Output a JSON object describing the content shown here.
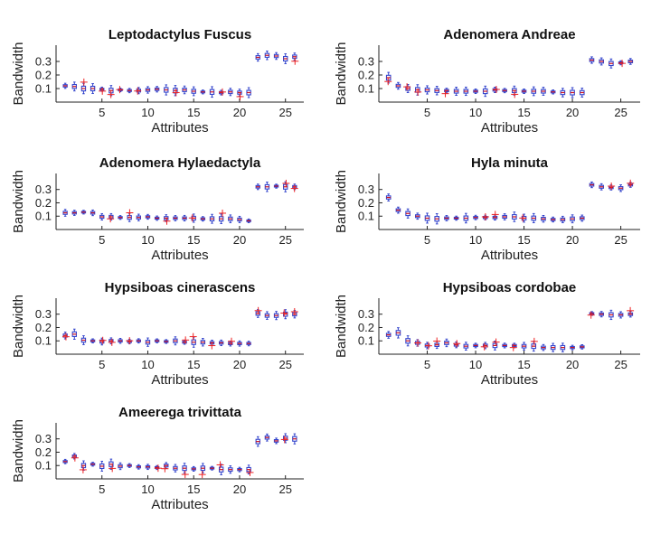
{
  "chart_data": [
    {
      "type": "box",
      "title": "Leptodactylus Fuscus",
      "xlabel": "Attributes",
      "ylabel": "Bandwidth",
      "xlim": [
        0,
        27
      ],
      "ylim": [
        0,
        0.42
      ],
      "xticks": [
        5,
        10,
        15,
        20,
        25
      ],
      "yticks": [
        0.1,
        0.2,
        0.3
      ],
      "series": {
        "name": "bandwidth",
        "medians": [
          0.12,
          0.115,
          0.1,
          0.1,
          0.095,
          0.085,
          0.09,
          0.085,
          0.085,
          0.09,
          0.095,
          0.09,
          0.085,
          0.09,
          0.08,
          0.075,
          0.075,
          0.07,
          0.075,
          0.07,
          0.07,
          0.33,
          0.345,
          0.34,
          0.32,
          0.335
        ]
      }
    },
    {
      "type": "box",
      "title": "Adenomera Andreae",
      "xlabel": "Attributes",
      "ylabel": "Bandwidth",
      "xlim": [
        0,
        27
      ],
      "ylim": [
        0,
        0.42
      ],
      "xticks": [
        5,
        10,
        15,
        20,
        25
      ],
      "yticks": [
        0.1,
        0.2,
        0.3
      ],
      "series": {
        "name": "bandwidth",
        "medians": [
          0.18,
          0.12,
          0.1,
          0.09,
          0.09,
          0.085,
          0.085,
          0.08,
          0.08,
          0.08,
          0.08,
          0.09,
          0.085,
          0.085,
          0.08,
          0.08,
          0.08,
          0.075,
          0.07,
          0.07,
          0.07,
          0.31,
          0.3,
          0.285,
          0.29,
          0.3
        ]
      }
    },
    {
      "type": "box",
      "title": "Adenomera Hylaedactyla",
      "xlabel": "Attributes",
      "ylabel": "Bandwidth",
      "xlim": [
        0,
        27
      ],
      "ylim": [
        0,
        0.42
      ],
      "xticks": [
        5,
        10,
        15,
        20,
        25
      ],
      "yticks": [
        0.1,
        0.2,
        0.3
      ],
      "series": {
        "name": "bandwidth",
        "medians": [
          0.125,
          0.125,
          0.13,
          0.125,
          0.095,
          0.095,
          0.09,
          0.09,
          0.09,
          0.095,
          0.085,
          0.085,
          0.085,
          0.085,
          0.085,
          0.08,
          0.08,
          0.08,
          0.08,
          0.075,
          0.065,
          0.32,
          0.32,
          0.325,
          0.32,
          0.32
        ]
      }
    },
    {
      "type": "box",
      "title": "Hyla minuta",
      "xlabel": "Attributes",
      "ylabel": "Bandwidth",
      "xlim": [
        0,
        27
      ],
      "ylim": [
        0,
        0.42
      ],
      "xticks": [
        5,
        10,
        15,
        20,
        25
      ],
      "yticks": [
        0.1,
        0.2,
        0.3
      ],
      "series": {
        "name": "bandwidth",
        "medians": [
          0.24,
          0.145,
          0.12,
          0.1,
          0.085,
          0.08,
          0.085,
          0.085,
          0.085,
          0.09,
          0.09,
          0.09,
          0.095,
          0.095,
          0.085,
          0.085,
          0.08,
          0.075,
          0.075,
          0.08,
          0.085,
          0.335,
          0.32,
          0.315,
          0.31,
          0.335
        ]
      }
    },
    {
      "type": "box",
      "title": "Hypsiboas cinerascens",
      "xlabel": "Attributes",
      "ylabel": "Bandwidth",
      "xlim": [
        0,
        27
      ],
      "ylim": [
        0,
        0.42
      ],
      "xticks": [
        5,
        10,
        15,
        20,
        25
      ],
      "yticks": [
        0.1,
        0.2,
        0.3
      ],
      "series": {
        "name": "bandwidth",
        "medians": [
          0.14,
          0.15,
          0.105,
          0.1,
          0.095,
          0.1,
          0.1,
          0.095,
          0.1,
          0.09,
          0.1,
          0.095,
          0.1,
          0.09,
          0.09,
          0.09,
          0.085,
          0.085,
          0.08,
          0.08,
          0.08,
          0.305,
          0.29,
          0.29,
          0.3,
          0.3
        ]
      }
    },
    {
      "type": "box",
      "title": "Hypsiboas cordobae",
      "xlabel": "Attributes",
      "ylabel": "Bandwidth",
      "xlim": [
        0,
        27
      ],
      "ylim": [
        0,
        0.42
      ],
      "xticks": [
        5,
        10,
        15,
        20,
        25
      ],
      "yticks": [
        0.1,
        0.2,
        0.3
      ],
      "series": {
        "name": "bandwidth",
        "medians": [
          0.145,
          0.16,
          0.1,
          0.085,
          0.065,
          0.07,
          0.085,
          0.07,
          0.06,
          0.065,
          0.065,
          0.065,
          0.065,
          0.065,
          0.06,
          0.06,
          0.05,
          0.05,
          0.05,
          0.05,
          0.055,
          0.305,
          0.3,
          0.295,
          0.295,
          0.3
        ]
      }
    },
    {
      "type": "box",
      "title": "Ameerega trivittata",
      "xlabel": "Attributes",
      "ylabel": "Bandwidth",
      "xlim": [
        0,
        27
      ],
      "ylim": [
        0,
        0.42
      ],
      "xticks": [
        5,
        10,
        15,
        20,
        25
      ],
      "yticks": [
        0.1,
        0.2,
        0.3
      ],
      "series": {
        "name": "bandwidth",
        "medians": [
          0.13,
          0.17,
          0.1,
          0.11,
          0.095,
          0.11,
          0.095,
          0.1,
          0.09,
          0.09,
          0.085,
          0.1,
          0.08,
          0.08,
          0.075,
          0.08,
          0.08,
          0.07,
          0.07,
          0.07,
          0.07,
          0.28,
          0.31,
          0.285,
          0.305,
          0.3
        ]
      }
    }
  ],
  "colors": {
    "box": "#3344cc",
    "whisker": "#3344cc",
    "median": "#cc1122",
    "outlier": "#ee2222",
    "axis": "#222222"
  }
}
